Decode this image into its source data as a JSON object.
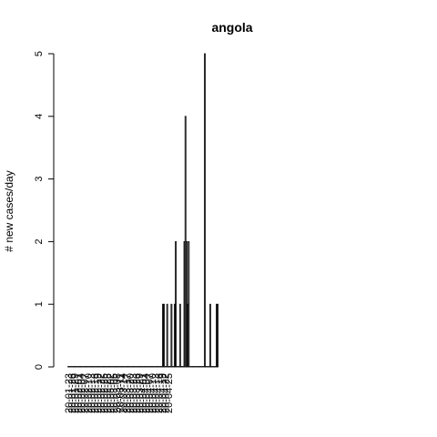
{
  "chart_data": {
    "type": "bar",
    "title": "angola",
    "xlabel": "",
    "ylabel": "# new cases/day",
    "ylim": [
      0,
      5
    ],
    "yticks": [
      0,
      1,
      2,
      3,
      4,
      5
    ],
    "bar_color": "#bebebe",
    "start_date": "2020-01-23",
    "xtick_labels": [
      "20-01-23",
      "20-01-26",
      "20-01-29",
      "20-02-01",
      "20-02-04",
      "20-02-07",
      "20-02-10",
      "20-02-13",
      "20-02-16",
      "20-02-19",
      "20-02-22",
      "20-02-25",
      "20-02-28",
      "20-03-02",
      "20-03-05",
      "20-03-08",
      "20-03-11",
      "20-03-14",
      "20-03-17",
      "20-03-20",
      "20-03-23",
      "20-03-26",
      "20-03-29",
      "20-04-01",
      "20-04-04",
      "20-04-07",
      "20-04-10",
      "20-04-13",
      "20-04-16",
      "20-04-19",
      "20-04-22",
      "20-04-25"
    ],
    "values": [
      0,
      0,
      0,
      0,
      0,
      0,
      0,
      0,
      0,
      0,
      0,
      0,
      0,
      0,
      0,
      0,
      0,
      0,
      0,
      0,
      0,
      0,
      0,
      0,
      0,
      0,
      0,
      0,
      0,
      0,
      0,
      0,
      0,
      0,
      0,
      0,
      0,
      0,
      0,
      0,
      0,
      0,
      0,
      0,
      0,
      0,
      0,
      0,
      0,
      0,
      0,
      0,
      0,
      0,
      0,
      0,
      0,
      0,
      0,
      0,
      0,
      0,
      0,
      0,
      0,
      0,
      0,
      0,
      0,
      0,
      0,
      0,
      0,
      0,
      0,
      0,
      0,
      0,
      0,
      0,
      0,
      0,
      0,
      0,
      0,
      0,
      0,
      0,
      1,
      1,
      0,
      0,
      1,
      0,
      0,
      0,
      1,
      0,
      0,
      1,
      2,
      0,
      0,
      0,
      1,
      0,
      0,
      0,
      2,
      4,
      2,
      1,
      2,
      0,
      0,
      0,
      0,
      0,
      0,
      0,
      0,
      0,
      0,
      0,
      0,
      0,
      0,
      5,
      0,
      0,
      0,
      0,
      1,
      0,
      0,
      0,
      0,
      0,
      1,
      1
    ]
  }
}
